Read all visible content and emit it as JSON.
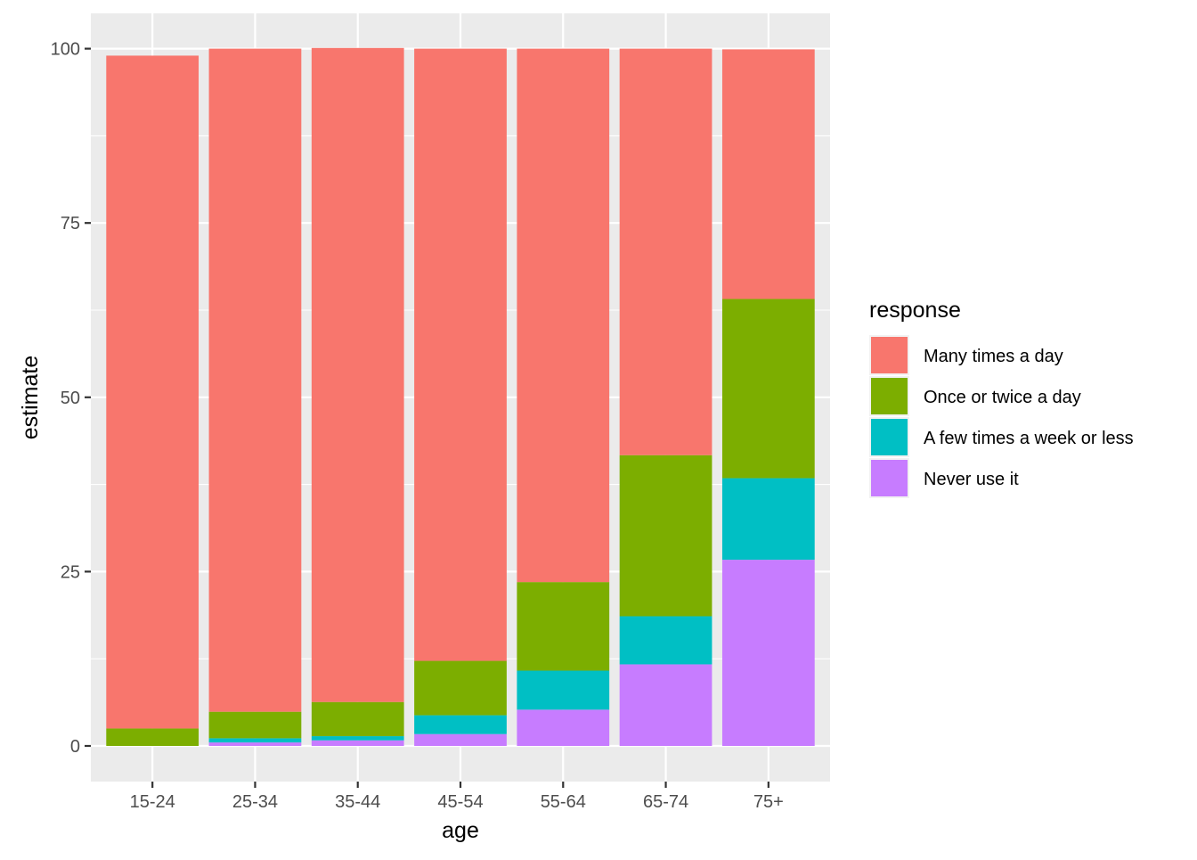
{
  "chart_data": {
    "type": "bar",
    "stacked": true,
    "xlabel": "age",
    "ylabel": "estimate",
    "categories": [
      "15-24",
      "25-34",
      "35-44",
      "45-54",
      "55-64",
      "65-74",
      "75+"
    ],
    "series": [
      {
        "name": "Many times a day",
        "color": "#F8766D",
        "values": [
          96.5,
          95.1,
          93.8,
          87.8,
          76.5,
          58.3,
          35.8
        ]
      },
      {
        "name": "Once or twice a day",
        "color": "#7CAE00",
        "values": [
          2.5,
          3.8,
          4.9,
          7.8,
          12.7,
          23.1,
          25.7
        ]
      },
      {
        "name": "A few times a week or less",
        "color": "#00BFC4",
        "values": [
          0,
          0.6,
          0.6,
          2.7,
          5.6,
          6.9,
          11.7
        ]
      },
      {
        "name": "Never use it",
        "color": "#C77CFF",
        "values": [
          0,
          0.5,
          0.8,
          1.7,
          5.2,
          11.7,
          26.7
        ]
      }
    ],
    "stack_order_bottom_to_top": [
      "Never use it",
      "A few times a week or less",
      "Once or twice a day",
      "Many times a day"
    ],
    "ylim": [
      -4.7,
      105
    ],
    "yticks": [
      0,
      25,
      50,
      75,
      100
    ],
    "ytick_labels": [
      "0",
      "25",
      "50",
      "75",
      "100"
    ],
    "grid": true,
    "legend": {
      "title": "response",
      "position": "right"
    },
    "panel_background": "#EBEBEB",
    "grid_color": "#FFFFFF"
  }
}
